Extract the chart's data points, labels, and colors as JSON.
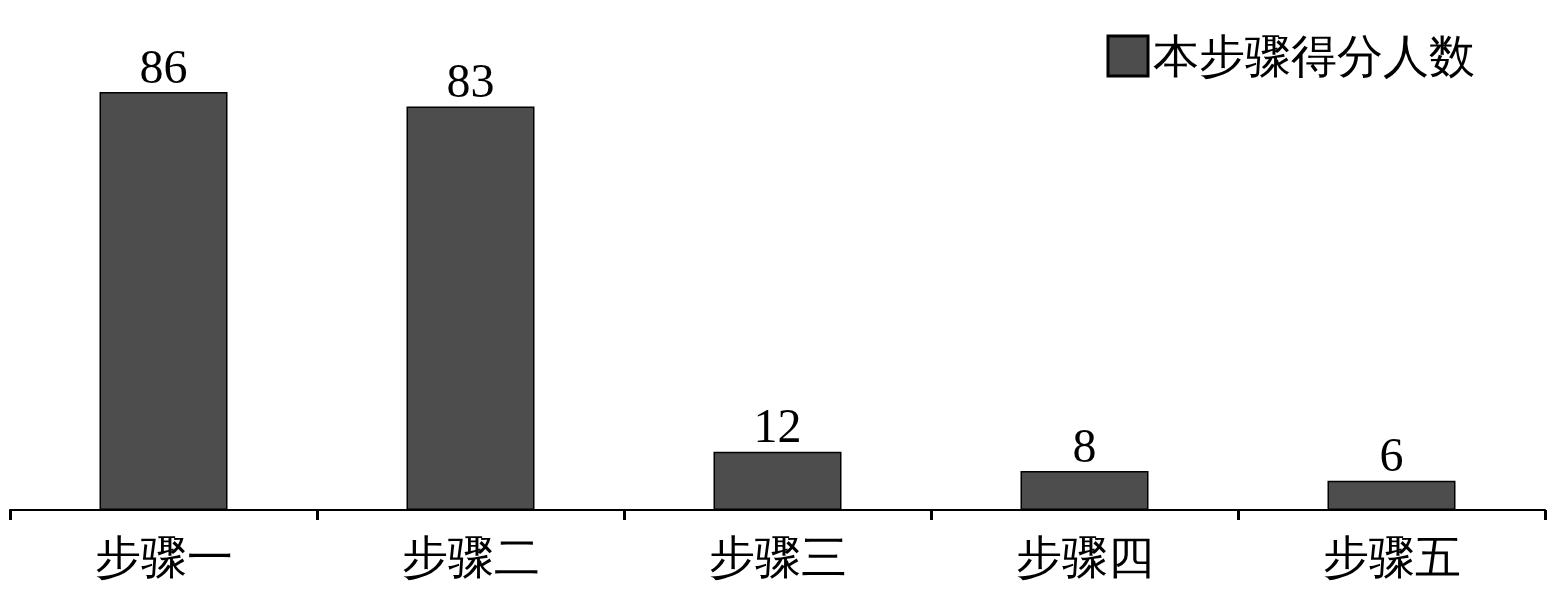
{
  "chart_data": {
    "type": "bar",
    "categories": [
      "步骤一",
      "步骤二",
      "步骤三",
      "步骤四",
      "步骤五"
    ],
    "series": [
      {
        "name": "本步骤得分人数",
        "color": "#4d4d4d",
        "values": [
          86,
          83,
          12,
          8,
          6
        ]
      }
    ],
    "data_labels": true,
    "legend": "top right",
    "grid": false
  }
}
